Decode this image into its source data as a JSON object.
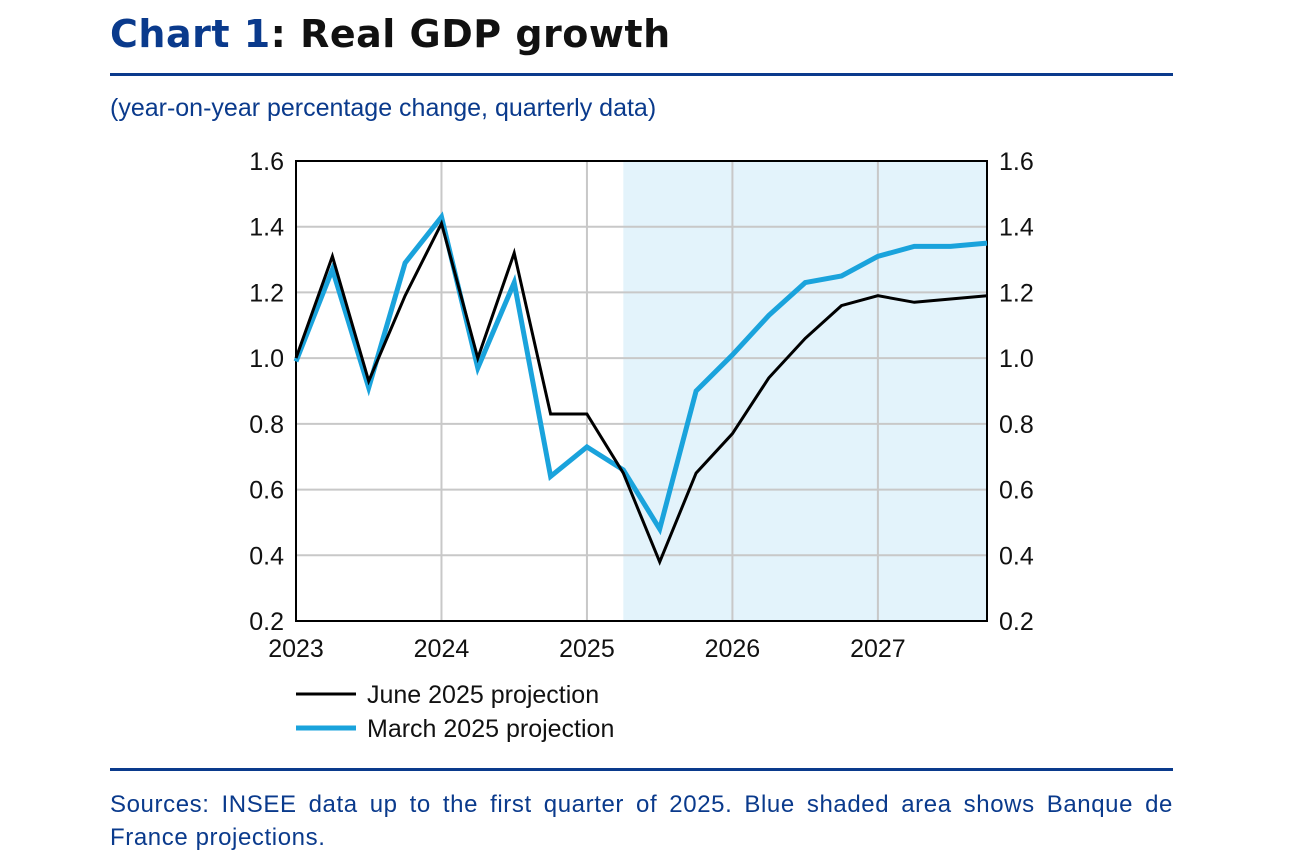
{
  "header": {
    "title_prefix": "Chart 1",
    "title_rest": ": Real GDP growth",
    "subtitle": "(year-on-year percentage change, quarterly data)"
  },
  "footer": {
    "sources": "Sources: INSEE data up to the first quarter of 2025. Blue shaded area shows Banque de France projections."
  },
  "colors": {
    "brand": "#0a3a8c",
    "june_series": "#000000",
    "march_series": "#1aa3dc",
    "projection_shade": "#e3f3fb",
    "grid": "#c8c8c8"
  },
  "chart_data": {
    "type": "line",
    "title": "Real GDP growth",
    "ylabel": "year-on-year percentage change",
    "ylim": [
      0.2,
      1.6
    ],
    "yticks": [
      0.2,
      0.4,
      0.6,
      0.8,
      1.0,
      1.2,
      1.4,
      1.6
    ],
    "ytick_labels": [
      "0.2",
      "0.4",
      "0.6",
      "0.8",
      "1.0",
      "1.2",
      "1.4",
      "1.6"
    ],
    "xlim": [
      2023.0,
      2027.75
    ],
    "xticks": [
      2023,
      2024,
      2025,
      2026,
      2027
    ],
    "xtick_labels": [
      "2023",
      "2024",
      "2025",
      "2026",
      "2027"
    ],
    "x": [
      2023.0,
      2023.25,
      2023.5,
      2023.75,
      2024.0,
      2024.25,
      2024.5,
      2024.75,
      2025.0,
      2025.25,
      2025.5,
      2025.75,
      2026.0,
      2026.25,
      2026.5,
      2026.75,
      2027.0,
      2027.25,
      2027.5,
      2027.75
    ],
    "series": [
      {
        "name": "June 2025 projection",
        "color": "#000000",
        "values": [
          1.0,
          1.31,
          0.93,
          1.19,
          1.41,
          1.0,
          1.32,
          0.83,
          0.83,
          0.65,
          0.38,
          0.65,
          0.77,
          0.94,
          1.06,
          1.16,
          1.19,
          1.17,
          1.18,
          1.19
        ]
      },
      {
        "name": "March 2025 projection",
        "color": "#1aa3dc",
        "values": [
          0.99,
          1.27,
          0.91,
          1.29,
          1.43,
          0.97,
          1.23,
          0.64,
          0.73,
          0.66,
          0.48,
          0.9,
          1.01,
          1.13,
          1.23,
          1.25,
          1.31,
          1.34,
          1.34,
          1.35
        ]
      }
    ],
    "shaded_region": {
      "from": 2025.25,
      "to": 2027.75,
      "label": "Banque de France projections"
    },
    "legend_position": "bottom-left",
    "grid": true,
    "dual_y_axis": true
  }
}
